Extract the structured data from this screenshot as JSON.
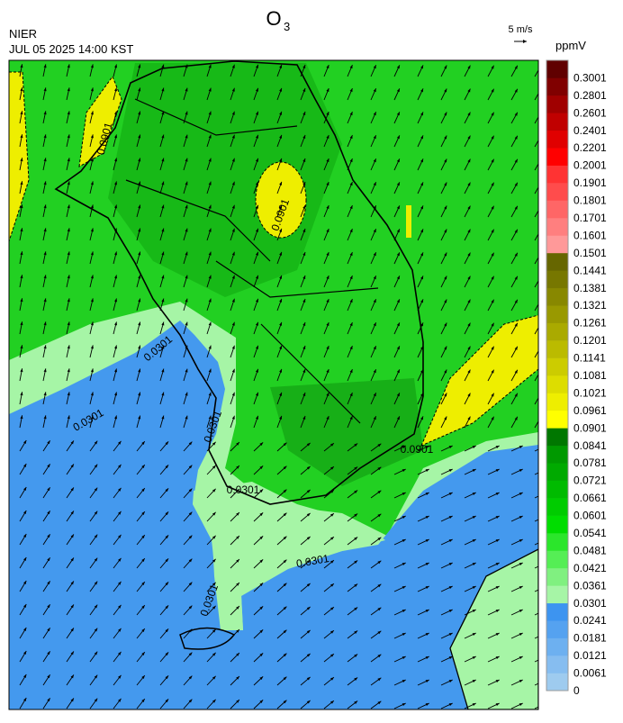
{
  "header": {
    "title": "O",
    "title_subscript": "3",
    "agency": "NIER",
    "datetime": "JUL 05 2025 14:00 KST",
    "wind_reference": "5 m/s"
  },
  "colorbar": {
    "unit": "ppmV",
    "ticks": [
      0,
      0.0061,
      0.0121,
      0.0181,
      0.0241,
      0.0301,
      0.0361,
      0.0421,
      0.0481,
      0.0541,
      0.0601,
      0.0661,
      0.0721,
      0.0781,
      0.0841,
      0.0901,
      0.0961,
      0.1021,
      0.1081,
      0.1141,
      0.1201,
      0.1261,
      0.1321,
      0.1381,
      0.1441,
      0.1501,
      0.1601,
      0.1701,
      0.1801,
      0.1901,
      0.2001,
      0.2201,
      0.2401,
      0.2601,
      0.2801,
      0.3001
    ],
    "colors": [
      "#9ecbef",
      "#86bdf0",
      "#6db0f0",
      "#55a2f0",
      "#3d94f0",
      "#a6f5a6",
      "#80f080",
      "#55ee55",
      "#2be62b",
      "#00dd00",
      "#00cc00",
      "#00bb00",
      "#00aa00",
      "#009900",
      "#007700",
      "#ffff00",
      "#eeee00",
      "#dddd00",
      "#cccc00",
      "#bbbb00",
      "#aaaa00",
      "#999900",
      "#888800",
      "#777700",
      "#666600",
      "#ff9999",
      "#ff7f7f",
      "#ff6666",
      "#ff4c4c",
      "#ff3333",
      "#ff0000",
      "#e00000",
      "#c00000",
      "#a00000",
      "#800000",
      "#600000"
    ]
  },
  "contour_labels": [
    "0.0901",
    "0.0901",
    "0.0901",
    "0.0301",
    "0.0301",
    "0.0301",
    "0.0301",
    "0.0301",
    "0.0301"
  ]
}
